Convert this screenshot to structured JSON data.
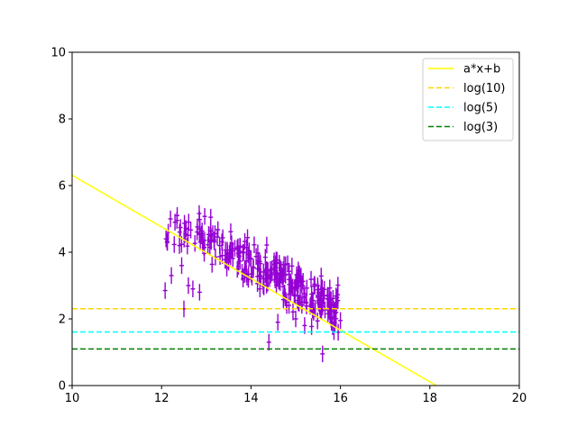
{
  "chart_data": {
    "type": "scatter",
    "title": "",
    "xlabel": "",
    "ylabel": "",
    "xlim": [
      10,
      20
    ],
    "ylim": [
      0,
      10
    ],
    "xticks": [
      "10",
      "12",
      "14",
      "16",
      "18",
      "20"
    ],
    "yticks": [
      "0",
      "2",
      "4",
      "6",
      "8",
      "10"
    ],
    "grid": false,
    "legend_position": "top-right",
    "scatter": {
      "color": "#9400d3",
      "marker": "errorbar",
      "x_error_estimate": 0.05,
      "y_error_estimate": 0.25,
      "x_range_estimate": [
        12.0,
        16.0
      ],
      "approx_points": 320,
      "sample_points": [
        [
          12.08,
          2.85
        ],
        [
          12.1,
          4.4
        ],
        [
          12.15,
          4.6
        ],
        [
          12.2,
          5.0
        ],
        [
          12.22,
          3.3
        ],
        [
          12.3,
          4.9
        ],
        [
          12.35,
          5.1
        ],
        [
          12.4,
          4.2
        ],
        [
          12.45,
          3.6
        ],
        [
          12.5,
          2.3
        ],
        [
          12.55,
          4.7
        ],
        [
          12.6,
          3.0
        ],
        [
          12.7,
          2.9
        ],
        [
          12.85,
          2.8
        ],
        [
          13.1,
          5.05
        ],
        [
          13.3,
          4.2
        ],
        [
          13.5,
          3.7
        ],
        [
          13.8,
          3.4
        ],
        [
          14.0,
          3.8
        ],
        [
          14.2,
          2.9
        ],
        [
          14.4,
          1.3
        ],
        [
          14.6,
          1.9
        ],
        [
          14.8,
          2.4
        ],
        [
          15.0,
          2.0
        ],
        [
          15.2,
          1.8
        ],
        [
          15.4,
          2.2
        ],
        [
          15.6,
          0.95
        ],
        [
          15.8,
          1.9
        ],
        [
          15.95,
          1.6
        ],
        [
          16.0,
          1.95
        ]
      ]
    },
    "lines": [
      {
        "name": "a*x+b",
        "kind": "linear",
        "color": "#ffff00",
        "style": "solid",
        "slope": -0.775,
        "intercept": 14.06
      },
      {
        "name": "log(10)",
        "kind": "hline",
        "color": "#ffd700",
        "style": "dashed",
        "y": 2.302585
      },
      {
        "name": "log(5)",
        "kind": "hline",
        "color": "#00ffff",
        "style": "dashed",
        "y": 1.609438
      },
      {
        "name": "log(3)",
        "kind": "hline",
        "color": "#008000",
        "style": "dashed",
        "y": 1.098612
      }
    ]
  }
}
